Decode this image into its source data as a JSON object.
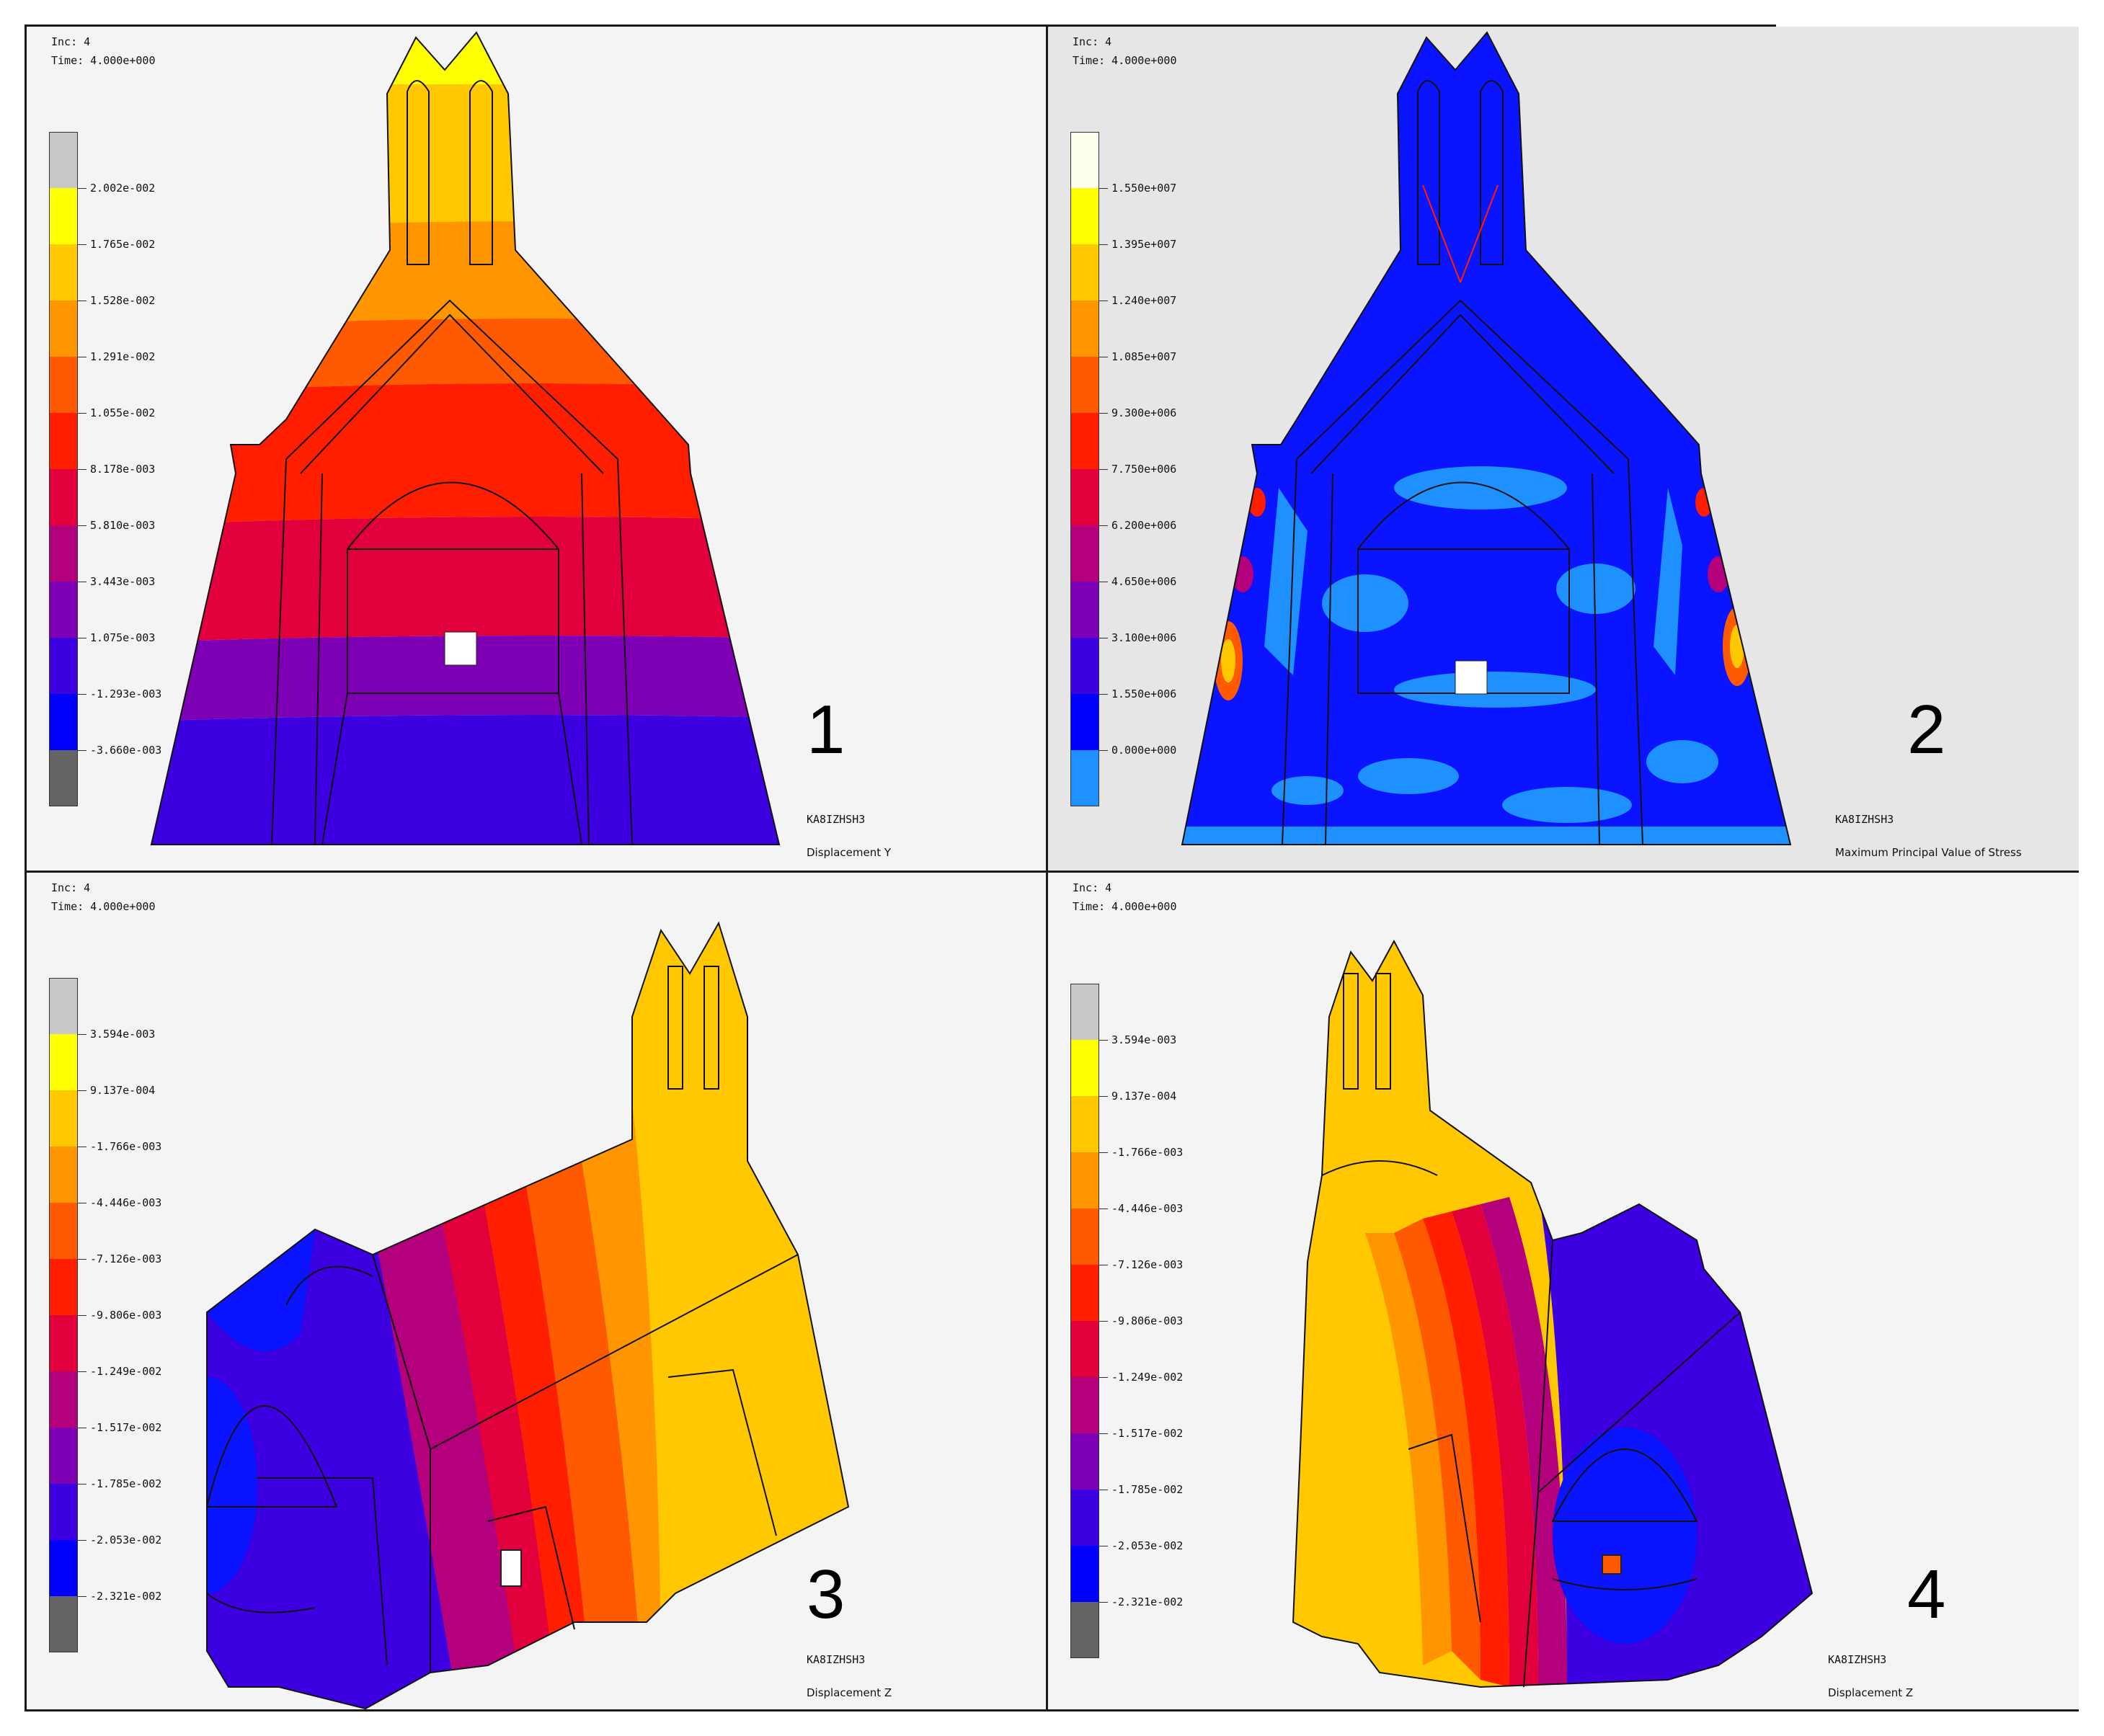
{
  "panels": [
    {
      "inc": "Inc:  4",
      "time": "Time:  4.000e+000",
      "legend_colors": [
        "#c8c8c8",
        "#ffff00",
        "#ffc800",
        "#ff9600",
        "#ff5a00",
        "#ff1e00",
        "#e1003c",
        "#b4007d",
        "#7d00b4",
        "#3c00e1",
        "#0000ff",
        "#646464"
      ],
      "tick_labels": [
        "2.002e-002",
        "1.765e-002",
        "1.528e-002",
        "1.291e-002",
        "1.055e-002",
        "8.178e-003",
        "5.810e-003",
        "3.443e-003",
        "1.075e-003",
        "-1.293e-003",
        "-3.660e-003"
      ],
      "number": "1",
      "job": "KA8IZHSH3",
      "quantity": "Displacement Y"
    },
    {
      "inc": "Inc:  4",
      "time": "Time:  4.000e+000",
      "legend_colors": [
        "#fffff0",
        "#ffff00",
        "#ffc800",
        "#ff9600",
        "#ff5a00",
        "#ff1e00",
        "#e1003c",
        "#b4007d",
        "#7d00b4",
        "#3c00e1",
        "#0000ff",
        "#1e90ff"
      ],
      "tick_labels": [
        "1.550e+007",
        "1.395e+007",
        "1.240e+007",
        "1.085e+007",
        "9.300e+006",
        "7.750e+006",
        "6.200e+006",
        "4.650e+006",
        "3.100e+006",
        "1.550e+006",
        "0.000e+000"
      ],
      "number": "2",
      "job": "KA8IZHSH3",
      "quantity": "Maximum Principal Value of Stress"
    },
    {
      "inc": "Inc:  4",
      "time": "Time:  4.000e+000",
      "legend_colors": [
        "#c8c8c8",
        "#ffff00",
        "#ffc800",
        "#ff9600",
        "#ff5a00",
        "#ff1e00",
        "#e1003c",
        "#b4007d",
        "#7d00b4",
        "#3c00e1",
        "#0000ff",
        "#646464"
      ],
      "tick_labels": [
        "3.594e-003",
        "9.137e-004",
        "-1.766e-003",
        "-4.446e-003",
        "-7.126e-003",
        "-9.806e-003",
        "-1.249e-002",
        "-1.517e-002",
        "-1.785e-002",
        "-2.053e-002",
        "-2.321e-002"
      ],
      "number": "3",
      "job": "KA8IZHSH3",
      "quantity": "Displacement Z"
    },
    {
      "inc": "Inc:  4",
      "time": "Time:  4.000e+000",
      "legend_colors": [
        "#c8c8c8",
        "#ffff00",
        "#ffc800",
        "#ff9600",
        "#ff5a00",
        "#ff1e00",
        "#e1003c",
        "#b4007d",
        "#7d00b4",
        "#3c00e1",
        "#0000ff",
        "#646464"
      ],
      "tick_labels": [
        "3.594e-003",
        "9.137e-004",
        "-1.766e-003",
        "-4.446e-003",
        "-7.126e-003",
        "-9.806e-003",
        "-1.249e-002",
        "-1.517e-002",
        "-1.785e-002",
        "-2.053e-002",
        "-2.321e-002"
      ],
      "number": "4",
      "job": "KA8IZHSH3",
      "quantity": "Displacement Z"
    }
  ]
}
